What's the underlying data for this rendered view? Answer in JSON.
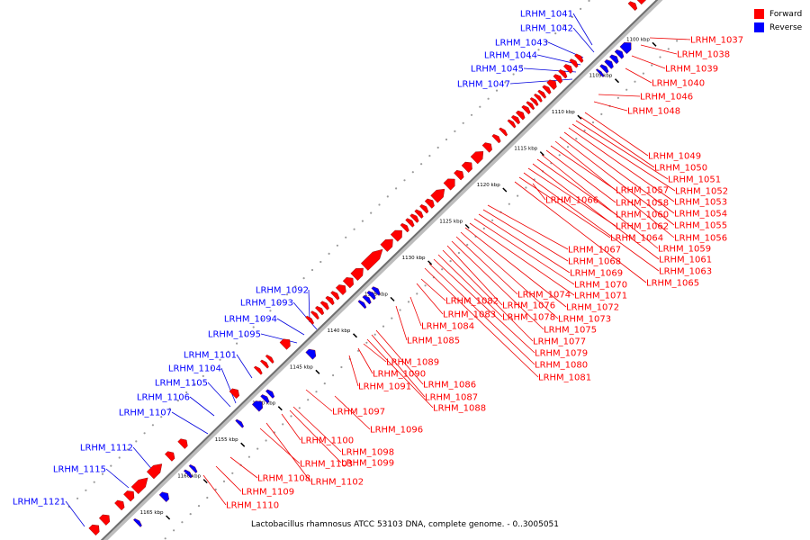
{
  "legend": {
    "items": [
      {
        "label": "Forward",
        "color": "#ff0000"
      },
      {
        "label": "Reverse",
        "color": "#0000ff"
      }
    ]
  },
  "caption": "Lactobacillus rhamnosus ATCC 53103 DNA, complete genome. - 0..3005051",
  "colors": {
    "forward": "#ff0000",
    "reverse": "#0000ff",
    "leader_forward": "#ee0000",
    "leader_reverse": "#0000dd"
  },
  "ticks": [
    "1100 kbp",
    "1105 kbp",
    "1110 kbp",
    "1115 kbp",
    "1120 kbp",
    "1125 kbp",
    "1130 kbp",
    "1135 kbp",
    "1140 kbp",
    "1145 kbp",
    "1150 kbp",
    "1155 kbp",
    "1160 kbp",
    "1165 kbp"
  ],
  "reverse_genes": [
    "LRHM_1041",
    "LRHM_1042",
    "LRHM_1043",
    "LRHM_1044",
    "LRHM_1045",
    "LRHM_1047",
    "LRHM_1092",
    "LRHM_1093",
    "LRHM_1094",
    "LRHM_1095",
    "LRHM_1101",
    "LRHM_1104",
    "LRHM_1105",
    "LRHM_1106",
    "LRHM_1107",
    "LRHM_1112",
    "LRHM_1115",
    "LRHM_1121"
  ],
  "forward_genes": [
    "LRHM_1037",
    "LRHM_1038",
    "LRHM_1039",
    "LRHM_1040",
    "LRHM_1046",
    "LRHM_1048",
    "LRHM_1049",
    "LRHM_1050",
    "LRHM_1051",
    "LRHM_1052",
    "LRHM_1053",
    "LRHM_1054",
    "LRHM_1055",
    "LRHM_1056",
    "LRHM_1057",
    "LRHM_1058",
    "LRHM_1059",
    "LRHM_1060",
    "LRHM_1061",
    "LRHM_1062",
    "LRHM_1063",
    "LRHM_1064",
    "LRHM_1065",
    "LRHM_1066",
    "LRHM_1067",
    "LRHM_1068",
    "LRHM_1069",
    "LRHM_1070",
    "LRHM_1071",
    "LRHM_1072",
    "LRHM_1073",
    "LRHM_1074",
    "LRHM_1075",
    "LRHM_1076",
    "LRHM_1077",
    "LRHM_1078",
    "LRHM_1079",
    "LRHM_1080",
    "LRHM_1081",
    "LRHM_1082",
    "LRHM_1083",
    "LRHM_1084",
    "LRHM_1085",
    "LRHM_1086",
    "LRHM_1087",
    "LRHM_1088",
    "LRHM_1089",
    "LRHM_1090",
    "LRHM_1091",
    "LRHM_1096",
    "LRHM_1097",
    "LRHM_1098",
    "LRHM_1099",
    "LRHM_1100",
    "LRHM_1102",
    "LRHM_1103",
    "LRHM_1108",
    "LRHM_1109",
    "LRHM_1110"
  ]
}
